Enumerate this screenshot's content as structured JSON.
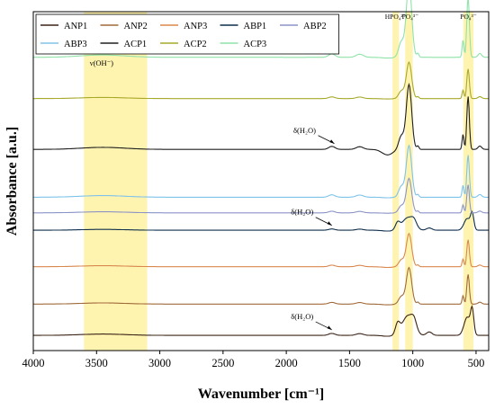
{
  "chart_data": {
    "type": "line",
    "xlabel": "Wavenumber [cm⁻¹]",
    "ylabel": "Absorbance [a.u.]",
    "xlim": [
      4000,
      400
    ],
    "x_reversed": true,
    "xticks": [
      4000,
      3500,
      3000,
      2500,
      2000,
      1500,
      1000,
      500
    ],
    "yticks": false,
    "grid": false,
    "legend_position": "top-left",
    "legend_columns": 5,
    "series": [
      {
        "name": "ANP1",
        "color": "#3b2416",
        "offset": 0.0,
        "scale": 0.62,
        "profile": "amorphous",
        "dip": 0.02
      },
      {
        "name": "ANP2",
        "color": "#a06a3a",
        "offset": 0.72,
        "scale": 0.55,
        "profile": "sharp",
        "dip": 0.02
      },
      {
        "name": "ANP3",
        "color": "#d9884e",
        "offset": 1.58,
        "scale": 0.5,
        "profile": "sharp",
        "dip": 0.02
      },
      {
        "name": "ABP1",
        "color": "#0f2f4c",
        "offset": 2.42,
        "scale": 0.4,
        "profile": "amorphous",
        "dip": 0.03
      },
      {
        "name": "ABP2",
        "color": "#8b94c7",
        "offset": 2.82,
        "scale": 0.52,
        "profile": "sharp",
        "dip": 0.01
      },
      {
        "name": "ABP3",
        "color": "#7ec3ea",
        "offset": 3.18,
        "scale": 0.78,
        "profile": "sharp",
        "dip": 0.01
      },
      {
        "name": "ACP1",
        "color": "#1f1f1f",
        "offset": 4.28,
        "scale": 0.98,
        "profile": "sharp",
        "dip": 0.08
      },
      {
        "name": "ACP2",
        "color": "#a7a92a",
        "offset": 5.45,
        "scale": 0.55,
        "profile": "sharp",
        "dip": 0.01
      },
      {
        "name": "ACP3",
        "color": "#8fe3a8",
        "offset": 6.4,
        "scale": 1.12,
        "profile": "sharp",
        "dip": 0.01
      }
    ],
    "bands": [
      {
        "from": 3600,
        "to": 3100,
        "label": "ν(OH⁻)"
      },
      {
        "from": 1160,
        "to": 1110,
        "label": "HPO₄²⁻"
      },
      {
        "from": 1060,
        "to": 1000,
        "label": "PO₄³⁻"
      },
      {
        "from": 600,
        "to": 520,
        "label": "PO₄³⁻"
      }
    ],
    "annotations": [
      {
        "text": "δ(H₂O)",
        "series": "ACP1",
        "x": 1620
      },
      {
        "text": "δ(H₂O)",
        "series": "ABP1",
        "x": 1640
      },
      {
        "text": "δ(H₂O)",
        "series": "ANP1",
        "x": 1640
      }
    ],
    "band_color": "#fff3b0"
  }
}
